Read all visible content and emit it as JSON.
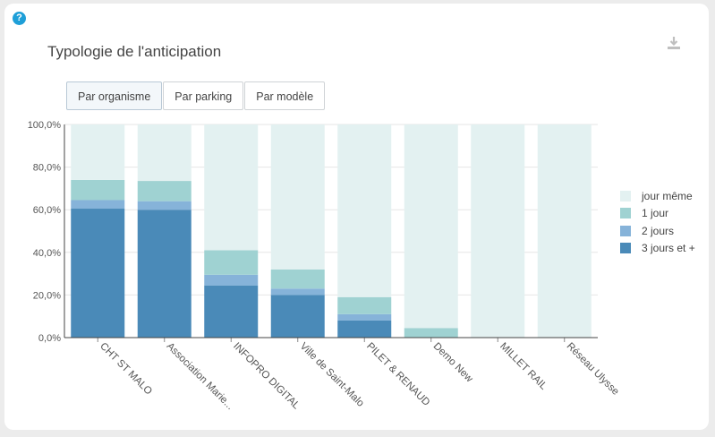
{
  "help_icon": "question-circle-icon",
  "download_icon": "download-icon",
  "title": "Typologie de l'anticipation",
  "tabs": [
    {
      "label": "Par organisme",
      "active": true
    },
    {
      "label": "Par parking",
      "active": false
    },
    {
      "label": "Par modèle",
      "active": false
    }
  ],
  "chart_data": {
    "type": "bar",
    "stacked": true,
    "categories": [
      "CHT ST MALO",
      "Association Marie...",
      "INFOPRO DIGITAL",
      "Ville de Saint-Malo",
      "PILET & RENAUD",
      "Demo New",
      "MILLET RAIL",
      "Réseau Ulysse"
    ],
    "series": [
      {
        "name": "3 jours et +",
        "color": "#4a8ab8",
        "values": [
          60.5,
          60.0,
          24.5,
          20.0,
          8.0,
          0.0,
          0.0,
          0.0
        ]
      },
      {
        "name": "2 jours",
        "color": "#86b3d9",
        "values": [
          4.0,
          4.0,
          5.0,
          3.0,
          3.0,
          0.0,
          0.0,
          0.0
        ]
      },
      {
        "name": "1 jour",
        "color": "#9fd2d2",
        "values": [
          9.5,
          9.5,
          11.5,
          9.0,
          8.0,
          4.5,
          0.0,
          0.0
        ]
      },
      {
        "name": "jour même",
        "color": "#e3f1f1",
        "values": [
          26.0,
          26.5,
          59.0,
          68.0,
          81.0,
          95.5,
          100.0,
          100.0
        ]
      }
    ],
    "ylim": [
      0,
      100
    ],
    "yticks": [
      "0,0%",
      "20,0%",
      "40,0%",
      "60,0%",
      "80,0%",
      "100,0%"
    ],
    "grid": true,
    "legend_position": "right"
  }
}
